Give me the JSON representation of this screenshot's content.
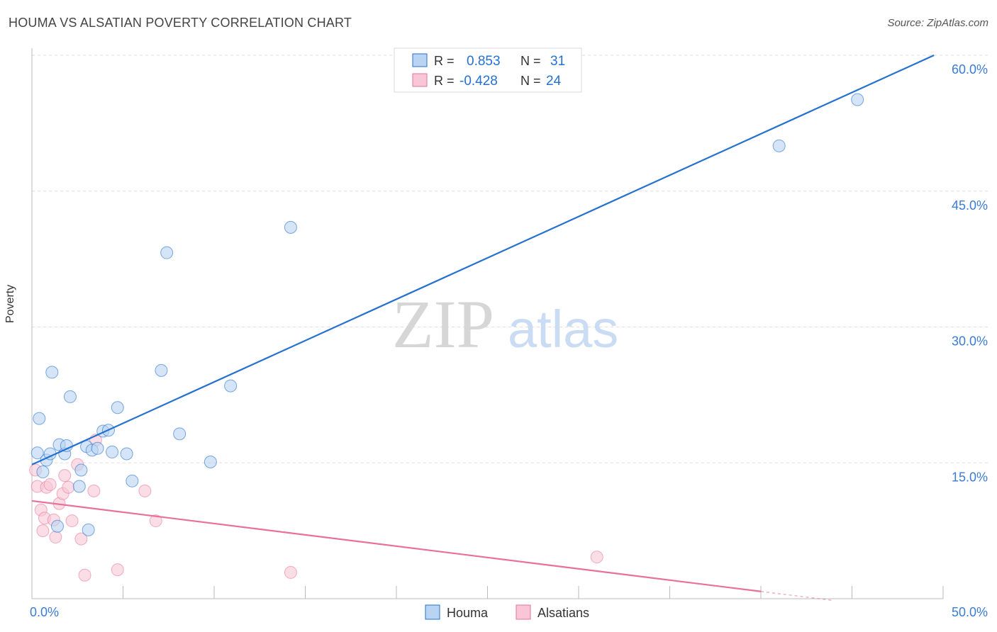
{
  "title": "HOUMA VS ALSATIAN POVERTY CORRELATION CHART",
  "source": "Source: ZipAtlas.com",
  "watermark": {
    "zip": "ZIP",
    "atlas": "atlas"
  },
  "colors": {
    "blue": "#2471cf",
    "pink": "#e8709a",
    "blue_fill": "#b9d3f2",
    "pink_fill": "#f8c6d6",
    "axis_label_blue": "#3a7bd5"
  },
  "legend_stats": [
    {
      "r_label": "R =",
      "r_value": "0.853",
      "n_label": "N =",
      "n_value": "31"
    },
    {
      "r_label": "R =",
      "r_value": "-0.428",
      "n_label": "N =",
      "n_value": "24"
    }
  ],
  "chart_data": {
    "type": "scatter",
    "title": "HOUMA VS ALSATIAN POVERTY CORRELATION CHART",
    "xlabel": "",
    "ylabel": "Poverty",
    "xlim": [
      0,
      50
    ],
    "ylim": [
      0,
      60
    ],
    "x_tick_labels": [
      "0.0%",
      "50.0%"
    ],
    "y_ticks": [
      15,
      30,
      45,
      60
    ],
    "y_tick_labels": [
      "15.0%",
      "30.0%",
      "45.0%",
      "60.0%"
    ],
    "grid": true,
    "legend_position": "bottom",
    "series": [
      {
        "name": "Houma",
        "color": "#2471cf",
        "points": [
          [
            0.3,
            16.1
          ],
          [
            0.6,
            14.0
          ],
          [
            0.4,
            19.9
          ],
          [
            0.8,
            15.3
          ],
          [
            1.0,
            16.0
          ],
          [
            1.1,
            25.0
          ],
          [
            1.5,
            17.0
          ],
          [
            1.8,
            16.0
          ],
          [
            1.9,
            16.9
          ],
          [
            2.1,
            22.3
          ],
          [
            2.6,
            12.4
          ],
          [
            2.7,
            14.2
          ],
          [
            3.1,
            7.6
          ],
          [
            3.0,
            16.8
          ],
          [
            3.3,
            16.4
          ],
          [
            3.6,
            16.6
          ],
          [
            3.9,
            18.5
          ],
          [
            4.2,
            18.6
          ],
          [
            4.4,
            16.2
          ],
          [
            4.7,
            21.1
          ],
          [
            5.2,
            16.0
          ],
          [
            5.5,
            13.0
          ],
          [
            7.1,
            25.2
          ],
          [
            7.4,
            38.2
          ],
          [
            8.1,
            18.2
          ],
          [
            9.8,
            15.1
          ],
          [
            10.9,
            23.5
          ],
          [
            14.2,
            41.0
          ],
          [
            1.4,
            8.0
          ],
          [
            41.0,
            50.0
          ],
          [
            45.3,
            55.1
          ]
        ],
        "trend": {
          "x": [
            0,
            49.5
          ],
          "y": [
            14.8,
            60.0
          ]
        }
      },
      {
        "name": "Alsatians",
        "color": "#e8709a",
        "points": [
          [
            0.2,
            14.2
          ],
          [
            0.3,
            12.4
          ],
          [
            0.5,
            9.8
          ],
          [
            0.6,
            7.5
          ],
          [
            0.7,
            8.9
          ],
          [
            0.8,
            12.3
          ],
          [
            1.0,
            12.6
          ],
          [
            1.2,
            8.7
          ],
          [
            1.3,
            6.8
          ],
          [
            1.5,
            10.5
          ],
          [
            1.7,
            11.6
          ],
          [
            1.8,
            13.6
          ],
          [
            2.0,
            12.3
          ],
          [
            2.2,
            8.6
          ],
          [
            2.5,
            14.8
          ],
          [
            2.7,
            6.6
          ],
          [
            2.9,
            2.6
          ],
          [
            3.4,
            11.9
          ],
          [
            3.5,
            17.5
          ],
          [
            4.7,
            3.2
          ],
          [
            6.2,
            11.9
          ],
          [
            6.8,
            8.6
          ],
          [
            14.2,
            2.9
          ],
          [
            31.0,
            4.6
          ]
        ],
        "trend": {
          "x": [
            0,
            40
          ],
          "y": [
            10.8,
            0.8
          ]
        },
        "trend_dashed": {
          "x": [
            40,
            44
          ],
          "y": [
            0.8,
            -0.2
          ]
        }
      }
    ]
  }
}
